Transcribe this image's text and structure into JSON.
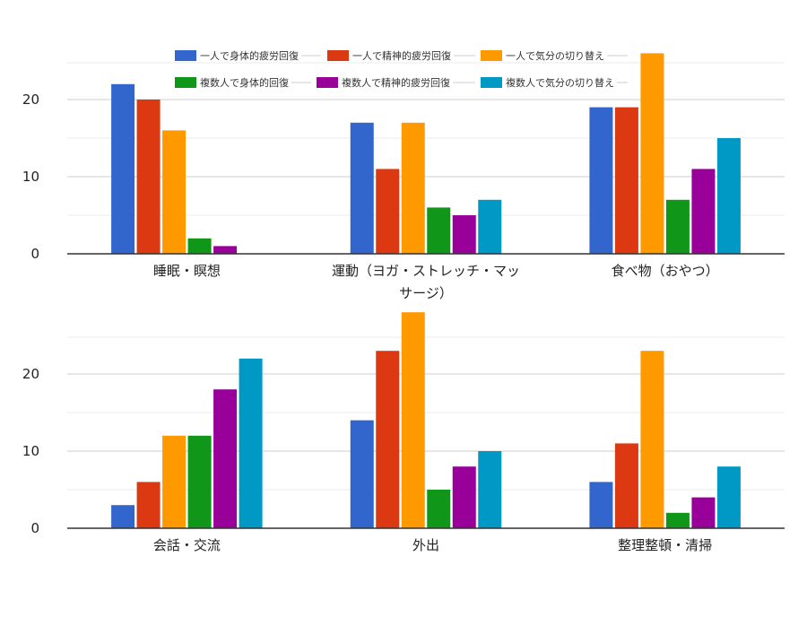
{
  "legend": [
    {
      "name": "一人で身体的疲労回復",
      "color": "#3366cc"
    },
    {
      "name": "一人で精神的疲労回復",
      "color": "#dc3912"
    },
    {
      "name": "一人で気分の切り替え",
      "color": "#ff9900"
    },
    {
      "name": "複数人で身体的回復",
      "color": "#109618"
    },
    {
      "name": "複数人で精神的疲労回復",
      "color": "#990099"
    },
    {
      "name": "複数人で気分の切り替え",
      "color": "#0099c6"
    }
  ],
  "chart_data": [
    {
      "type": "bar",
      "categories": [
        [
          "睡眠・瞑想"
        ],
        [
          "運動（ヨガ・ストレッチ・マッ",
          "サージ）"
        ],
        [
          "食べ物（おやつ）"
        ]
      ],
      "series": [
        {
          "name": "一人で身体的疲労回復",
          "values": [
            22,
            17,
            19
          ]
        },
        {
          "name": "一人で精神的疲労回復",
          "values": [
            20,
            11,
            19
          ]
        },
        {
          "name": "一人で気分の切り替え",
          "values": [
            16,
            17,
            26
          ]
        },
        {
          "name": "複数人で身体的回復",
          "values": [
            2,
            6,
            7
          ]
        },
        {
          "name": "複数人で精神的疲労回復",
          "values": [
            1,
            5,
            11
          ]
        },
        {
          "name": "複数人で気分の切り替え",
          "values": [
            0,
            7,
            15
          ]
        }
      ],
      "yticks": [
        0,
        10,
        20
      ],
      "ylim": [
        0,
        26
      ],
      "grid": true,
      "legend_position": "top"
    },
    {
      "type": "bar",
      "categories": [
        [
          "会話・交流"
        ],
        [
          "外出"
        ],
        [
          "整理整頓・清掃"
        ]
      ],
      "series": [
        {
          "name": "一人で身体的疲労回復",
          "values": [
            3,
            14,
            6
          ]
        },
        {
          "name": "一人で精神的疲労回復",
          "values": [
            6,
            23,
            11
          ]
        },
        {
          "name": "一人で気分の切り替え",
          "values": [
            12,
            28,
            23
          ]
        },
        {
          "name": "複数人で身体的回復",
          "values": [
            12,
            5,
            2
          ]
        },
        {
          "name": "複数人で精神的疲労回復",
          "values": [
            18,
            8,
            4
          ]
        },
        {
          "name": "複数人で気分の切り替え",
          "values": [
            22,
            10,
            8
          ]
        }
      ],
      "yticks": [
        0,
        10,
        20
      ],
      "ylim": [
        0,
        28
      ],
      "grid": true
    }
  ]
}
